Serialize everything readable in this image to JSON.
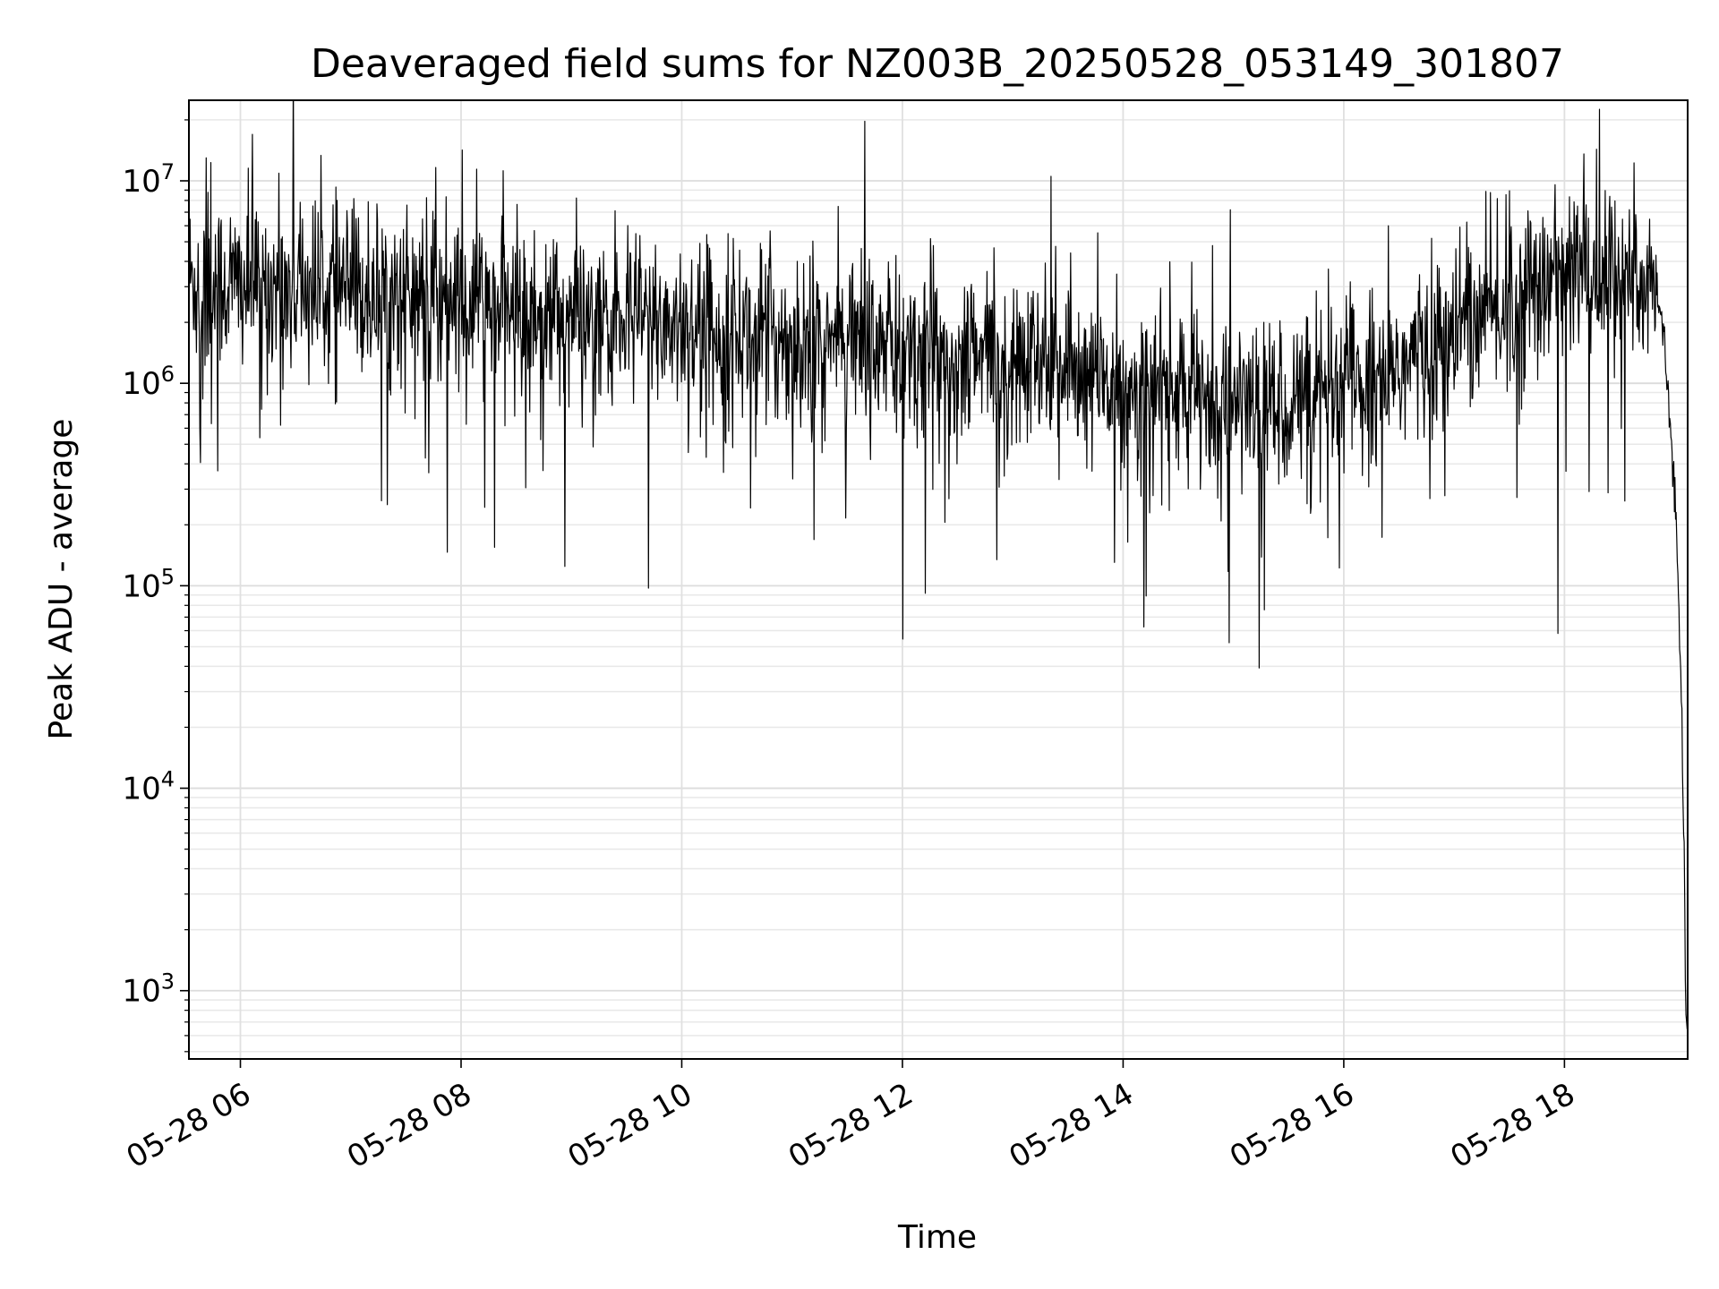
{
  "chart_data": {
    "type": "line",
    "title": "Deaveraged field sums for NZ003B_20250528_053149_301807",
    "xlabel": "Time",
    "ylabel": "Peak ADU - average",
    "yscale": "log",
    "ylim": [
      460,
      25000000
    ],
    "xlim": [
      "05-28 05:32",
      "05-28 19:07"
    ],
    "grid": true,
    "line_color": "#000000",
    "x_ticks": [
      {
        "hour": 6,
        "label": "05-28 06"
      },
      {
        "hour": 8,
        "label": "05-28 08"
      },
      {
        "hour": 10,
        "label": "05-28 10"
      },
      {
        "hour": 12,
        "label": "05-28 12"
      },
      {
        "hour": 14,
        "label": "05-28 14"
      },
      {
        "hour": 16,
        "label": "05-28 16"
      },
      {
        "hour": 18,
        "label": "05-28 18"
      }
    ],
    "y_ticks": [
      {
        "value": 1000,
        "base": "10",
        "exp": "3"
      },
      {
        "value": 10000,
        "base": "10",
        "exp": "4"
      },
      {
        "value": 100000,
        "base": "10",
        "exp": "5"
      },
      {
        "value": 1000000,
        "base": "10",
        "exp": "6"
      },
      {
        "value": 10000000,
        "base": "10",
        "exp": "7"
      }
    ],
    "series": [
      {
        "x": [
          "05-28 05:32",
          "05-28 05:50",
          "05-28 06:10",
          "05-28 06:30",
          "05-28 06:50",
          "05-28 07:10",
          "05-28 07:30",
          "05-28 07:50",
          "05-28 08:10",
          "05-28 08:30",
          "05-28 08:50",
          "05-28 09:10",
          "05-28 09:30",
          "05-28 09:50",
          "05-28 10:10",
          "05-28 10:30",
          "05-28 10:50",
          "05-28 11:10",
          "05-28 11:30",
          "05-28 11:50",
          "05-28 12:10",
          "05-28 12:30",
          "05-28 12:50",
          "05-28 13:10",
          "05-28 13:30",
          "05-28 13:50",
          "05-28 14:10",
          "05-28 14:30",
          "05-28 14:50",
          "05-28 15:10",
          "05-28 15:30",
          "05-28 15:50",
          "05-28 16:10",
          "05-28 16:30",
          "05-28 16:50",
          "05-28 17:10",
          "05-28 17:30",
          "05-28 17:50",
          "05-28 18:10",
          "05-28 18:30",
          "05-28 18:50",
          "05-28 18:53",
          "05-28 18:56",
          "05-28 18:59",
          "05-28 19:01",
          "05-28 19:03",
          "05-28 19:05",
          "05-28 19:06"
        ],
        "y": [
          3200000,
          3100000,
          3000000,
          3000000,
          2900000,
          2800000,
          2700000,
          2600000,
          2500000,
          2300000,
          2200000,
          2100000,
          2100000,
          2000000,
          1900000,
          1800000,
          1700000,
          1600000,
          1500000,
          1400000,
          1400000,
          1300000,
          1300000,
          1200000,
          1100000,
          1000000,
          950000,
          900000,
          850000,
          800000,
          800000,
          850000,
          1000000,
          1200000,
          1500000,
          1900000,
          2500000,
          3200000,
          3700000,
          3400000,
          2900000,
          2000000,
          1000000,
          400000,
          180000,
          40000,
          6000,
          700
        ]
      }
    ]
  }
}
